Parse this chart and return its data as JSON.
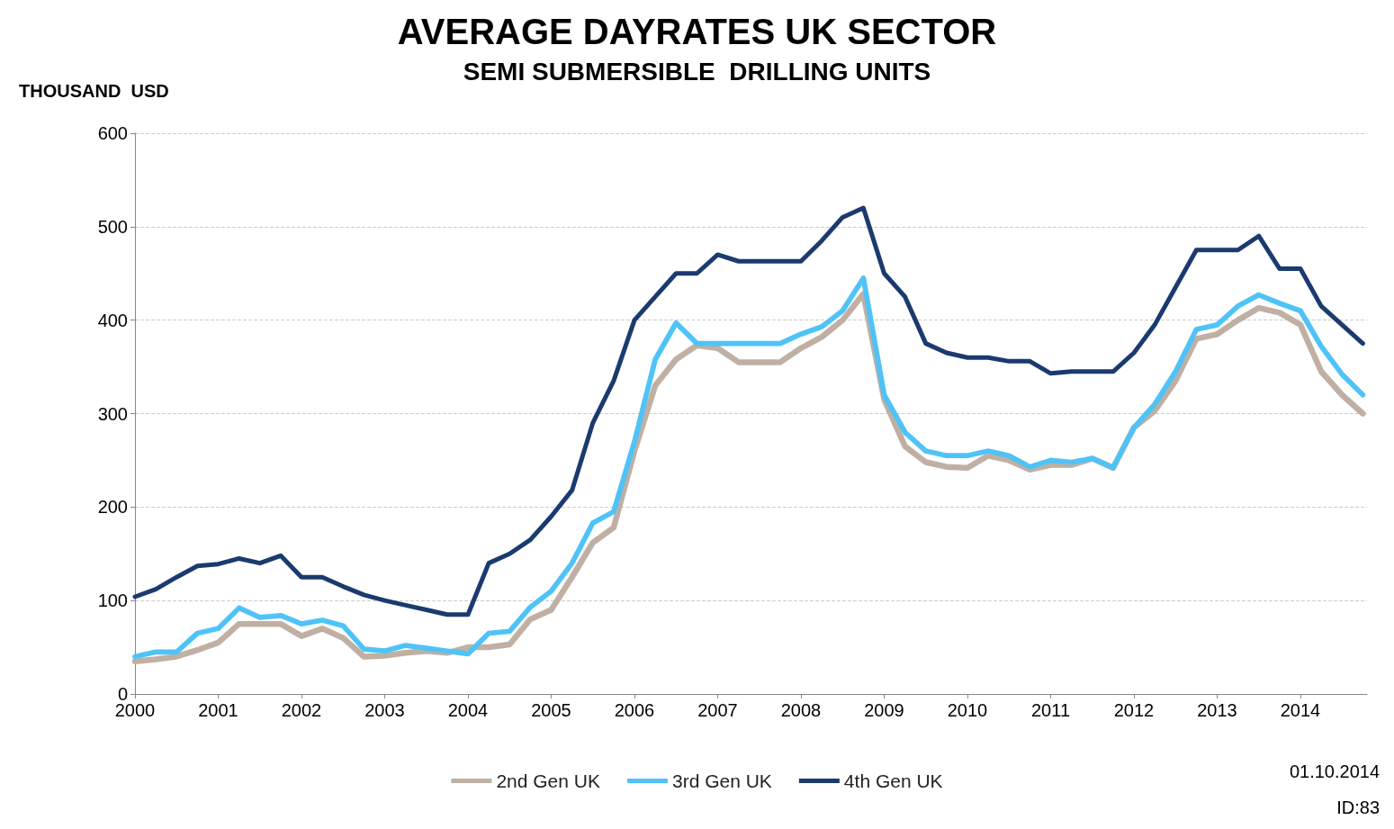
{
  "chart_data": {
    "type": "line",
    "title": "AVERAGE DAYRATES UK SECTOR",
    "subtitle": "SEMI SUBMERSIBLE  DRILLING UNITS",
    "ylabel": "THOUSAND  USD",
    "x": [
      2000,
      2000.25,
      2000.5,
      2000.75,
      2001,
      2001.25,
      2001.5,
      2001.75,
      2002,
      2002.25,
      2002.5,
      2002.75,
      2003,
      2003.25,
      2003.5,
      2003.75,
      2004,
      2004.25,
      2004.5,
      2004.75,
      2005,
      2005.25,
      2005.5,
      2005.75,
      2006,
      2006.25,
      2006.5,
      2006.75,
      2007,
      2007.25,
      2007.5,
      2007.75,
      2008,
      2008.25,
      2008.5,
      2008.75,
      2009,
      2009.25,
      2009.5,
      2009.75,
      2010,
      2010.25,
      2010.5,
      2010.75,
      2011,
      2011.25,
      2011.5,
      2011.75,
      2012,
      2012.25,
      2012.5,
      2012.75,
      2013,
      2013.25,
      2013.5,
      2013.75,
      2014,
      2014.25,
      2014.5,
      2014.75
    ],
    "series": [
      {
        "name": "2nd Gen UK",
        "color": "#bfb0a3",
        "values": [
          35,
          37,
          40,
          47,
          55,
          75,
          75,
          75,
          62,
          70,
          60,
          40,
          41,
          44,
          46,
          44,
          50,
          50,
          53,
          80,
          90,
          125,
          162,
          178,
          260,
          330,
          358,
          373,
          370,
          355,
          355,
          355,
          370,
          382,
          400,
          428,
          315,
          265,
          248,
          243,
          242,
          255,
          250,
          240,
          245,
          245,
          252,
          242,
          285,
          303,
          335,
          380,
          385,
          400,
          413,
          408,
          395,
          345,
          320,
          300
        ]
      },
      {
        "name": "3rd Gen UK",
        "color": "#4fc3f7",
        "values": [
          40,
          45,
          45,
          65,
          70,
          92,
          82,
          84,
          75,
          79,
          73,
          48,
          46,
          52,
          49,
          46,
          43,
          65,
          67,
          93,
          110,
          140,
          183,
          195,
          270,
          358,
          397,
          375,
          375,
          375,
          375,
          375,
          385,
          393,
          410,
          445,
          320,
          280,
          260,
          255,
          255,
          260,
          255,
          243,
          250,
          248,
          252,
          242,
          285,
          310,
          345,
          390,
          395,
          415,
          427,
          418,
          410,
          372,
          342,
          320
        ]
      },
      {
        "name": "4th Gen UK",
        "color": "#1b3a6f",
        "values": [
          104,
          112,
          125,
          137,
          139,
          145,
          140,
          148,
          125,
          125,
          115,
          106,
          100,
          95,
          90,
          85,
          85,
          140,
          150,
          165,
          190,
          218,
          290,
          335,
          400,
          425,
          450,
          450,
          470,
          463,
          463,
          463,
          463,
          485,
          510,
          520,
          450,
          425,
          375,
          365,
          360,
          360,
          356,
          356,
          343,
          345,
          345,
          345,
          365,
          395,
          435,
          475,
          475,
          475,
          490,
          455,
          455,
          415,
          395,
          375
        ]
      }
    ],
    "xlim": [
      2000,
      2014.8
    ],
    "xticks": [
      2000,
      2001,
      2002,
      2003,
      2004,
      2005,
      2006,
      2007,
      2008,
      2009,
      2010,
      2011,
      2012,
      2013,
      2014
    ],
    "ylim": [
      0,
      600
    ],
    "yticks": [
      0,
      100,
      200,
      300,
      400,
      500,
      600
    ],
    "grid": "y",
    "legend": "bottom",
    "marker": "none",
    "line_style": "solid",
    "annotations": [
      "01.10.2014",
      "ID:83"
    ]
  }
}
